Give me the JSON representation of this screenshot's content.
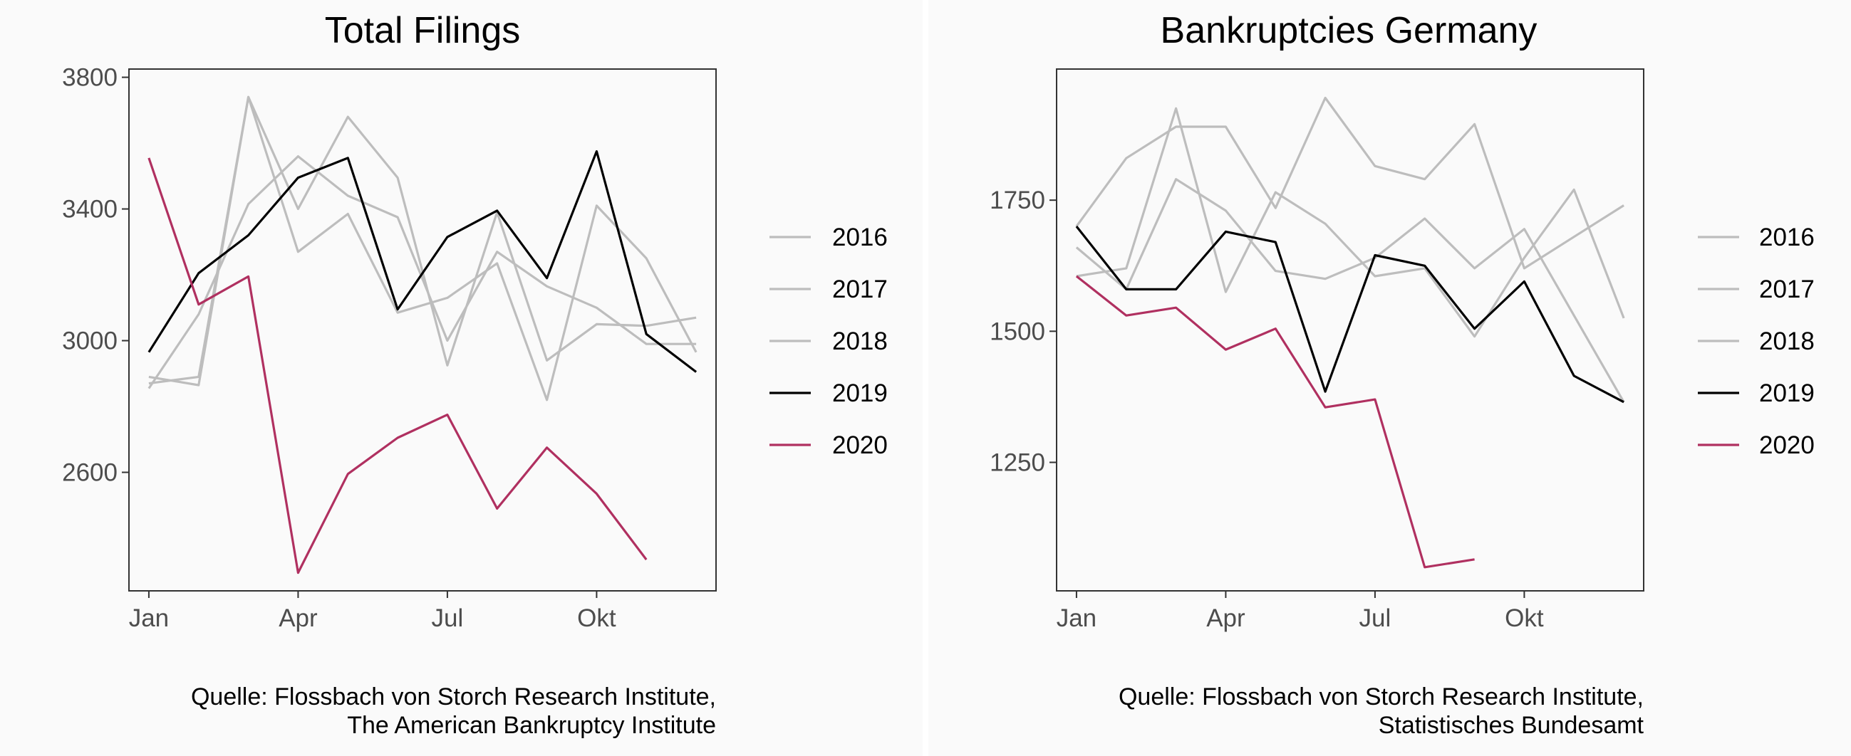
{
  "colors": {
    "gray": "#bdbdbd",
    "black": "#000000",
    "highlight": "#b03060",
    "axis": "#333333",
    "text": "#4d4d4d",
    "background": "#fafafa"
  },
  "chart_data": [
    {
      "type": "line",
      "title": "Total Filings",
      "x": [
        1,
        2,
        3,
        4,
        5,
        6,
        7,
        8,
        9,
        10,
        11,
        12
      ],
      "xticks": [
        {
          "value": 1,
          "label": "Jan"
        },
        {
          "value": 4,
          "label": "Apr"
        },
        {
          "value": 7,
          "label": "Jul"
        },
        {
          "value": 10,
          "label": "Okt"
        }
      ],
      "yticks": [
        2600,
        3000,
        3400,
        3800
      ],
      "xlim": [
        0.6,
        12.4
      ],
      "ylim": [
        2240,
        3825
      ],
      "series": [
        {
          "name": "2016",
          "color": "#bdbdbd",
          "values": [
            2870,
            2890,
            3740,
            3270,
            3385,
            3085,
            3130,
            3235,
            2820,
            3410,
            3250,
            2965
          ]
        },
        {
          "name": "2017",
          "color": "#bdbdbd",
          "values": [
            2890,
            2865,
            3740,
            3400,
            3680,
            3495,
            2925,
            3390,
            2940,
            3050,
            3045,
            3070
          ]
        },
        {
          "name": "2018",
          "color": "#bdbdbd",
          "values": [
            2855,
            3080,
            3415,
            3560,
            3440,
            3375,
            3000,
            3270,
            3165,
            3100,
            2990,
            2990
          ]
        },
        {
          "name": "2019",
          "color": "#000000",
          "values": [
            2965,
            3205,
            3320,
            3495,
            3555,
            3095,
            3315,
            3395,
            3190,
            3575,
            3020,
            2905
          ]
        },
        {
          "name": "2020",
          "color": "#b03060",
          "values": [
            3555,
            3110,
            3195,
            2295,
            2595,
            2705,
            2775,
            2490,
            2675,
            2535,
            2335,
            null
          ]
        }
      ],
      "legend": [
        "2016",
        "2017",
        "2018",
        "2019",
        "2020"
      ],
      "legend_position": "right",
      "caption": [
        "Quelle: Flossbach von Storch Research Institute,",
        "The American Bankruptcy Institute"
      ]
    },
    {
      "type": "line",
      "title": "Bankruptcies Germany",
      "x": [
        1,
        2,
        3,
        4,
        5,
        6,
        7,
        8,
        9,
        10,
        11,
        12
      ],
      "xticks": [
        {
          "value": 1,
          "label": "Jan"
        },
        {
          "value": 4,
          "label": "Apr"
        },
        {
          "value": 7,
          "label": "Jul"
        },
        {
          "value": 10,
          "label": "Okt"
        }
      ],
      "yticks": [
        1250,
        1500,
        1750
      ],
      "xlim": [
        0.6,
        12.4
      ],
      "ylim": [
        1005,
        2000
      ],
      "series": [
        {
          "name": "2016",
          "color": "#bdbdbd",
          "values": [
            1700,
            1830,
            1890,
            1890,
            1735,
            1945,
            1815,
            1790,
            1895,
            1620,
            1680,
            1740
          ]
        },
        {
          "name": "2017",
          "color": "#bdbdbd",
          "values": [
            1660,
            1580,
            1790,
            1730,
            1615,
            1600,
            1640,
            1715,
            1620,
            1695,
            1530,
            1365
          ]
        },
        {
          "name": "2018",
          "color": "#bdbdbd",
          "values": [
            1605,
            1620,
            1925,
            1575,
            1765,
            1705,
            1605,
            1620,
            1490,
            1640,
            1770,
            1525
          ]
        },
        {
          "name": "2019",
          "color": "#000000",
          "values": [
            1700,
            1580,
            1580,
            1690,
            1670,
            1385,
            1645,
            1625,
            1505,
            1595,
            1415,
            1365
          ]
        },
        {
          "name": "2020",
          "color": "#b03060",
          "values": [
            1605,
            1530,
            1545,
            1465,
            1505,
            1355,
            1370,
            1050,
            1065,
            null,
            null,
            null
          ]
        }
      ],
      "legend": [
        "2016",
        "2017",
        "2018",
        "2019",
        "2020"
      ],
      "legend_position": "right",
      "caption": [
        "Quelle: Flossbach von Storch Research Institute,",
        "Statistisches Bundesamt"
      ]
    }
  ]
}
